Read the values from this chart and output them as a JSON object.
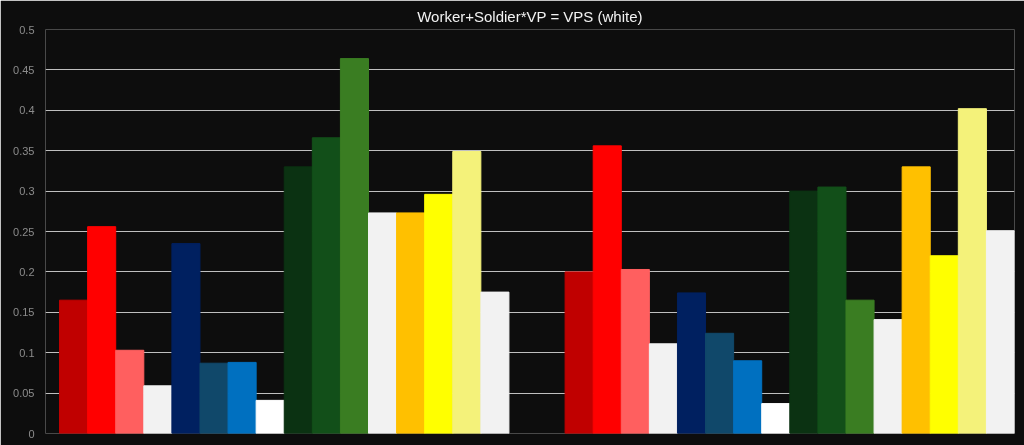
{
  "chart_data": {
    "type": "bar",
    "title": "Worker+Soldier*VP = VPS (white)",
    "categories": [
      null,
      null,
      null,
      null,
      null,
      null,
      null,
      null,
      null,
      null,
      null,
      null,
      null,
      null,
      null,
      null,
      null,
      null,
      null,
      null,
      null,
      null,
      null,
      null,
      null,
      null,
      null,
      null,
      null,
      null,
      null,
      null,
      null,
      null
    ],
    "values": [
      0.165,
      0.256,
      0.103,
      0.059,
      0.235,
      0.087,
      0.088,
      0.041,
      0.33,
      0.366,
      0.464,
      0.273,
      0.273,
      0.296,
      0.349,
      0.175,
      null,
      null,
      0.2,
      0.356,
      0.203,
      0.111,
      0.174,
      0.124,
      0.09,
      0.037,
      0.3,
      0.305,
      0.165,
      0.141,
      0.33,
      0.22,
      0.402,
      0.251
    ],
    "colors": [
      "#c00000",
      "#ff0000",
      "#ff5f5f",
      "#f2f2f2",
      "#002060",
      "#10486a",
      "#0070c0",
      "#ffffff",
      "#0b3212",
      "#124f19",
      "#3a7d22",
      "#f2f2f2",
      "#ffc000",
      "#ffff00",
      "#f4f27a",
      "#f2f2f2",
      null,
      null,
      "#c00000",
      "#ff0000",
      "#ff5f5f",
      "#f2f2f2",
      "#002060",
      "#10486a",
      "#0070c0",
      "#ffffff",
      "#0b3212",
      "#124f19",
      "#3a7d22",
      "#f2f2f2",
      "#ffc000",
      "#ffff00",
      "#f4f27a",
      "#f2f2f2"
    ],
    "ylim": [
      0,
      0.5
    ],
    "yticks": [
      0,
      0.05,
      0.1,
      0.15,
      0.2,
      0.25,
      0.3,
      0.35,
      0.4,
      0.45,
      0.5
    ],
    "grid": "y",
    "tick_labels": "y"
  }
}
